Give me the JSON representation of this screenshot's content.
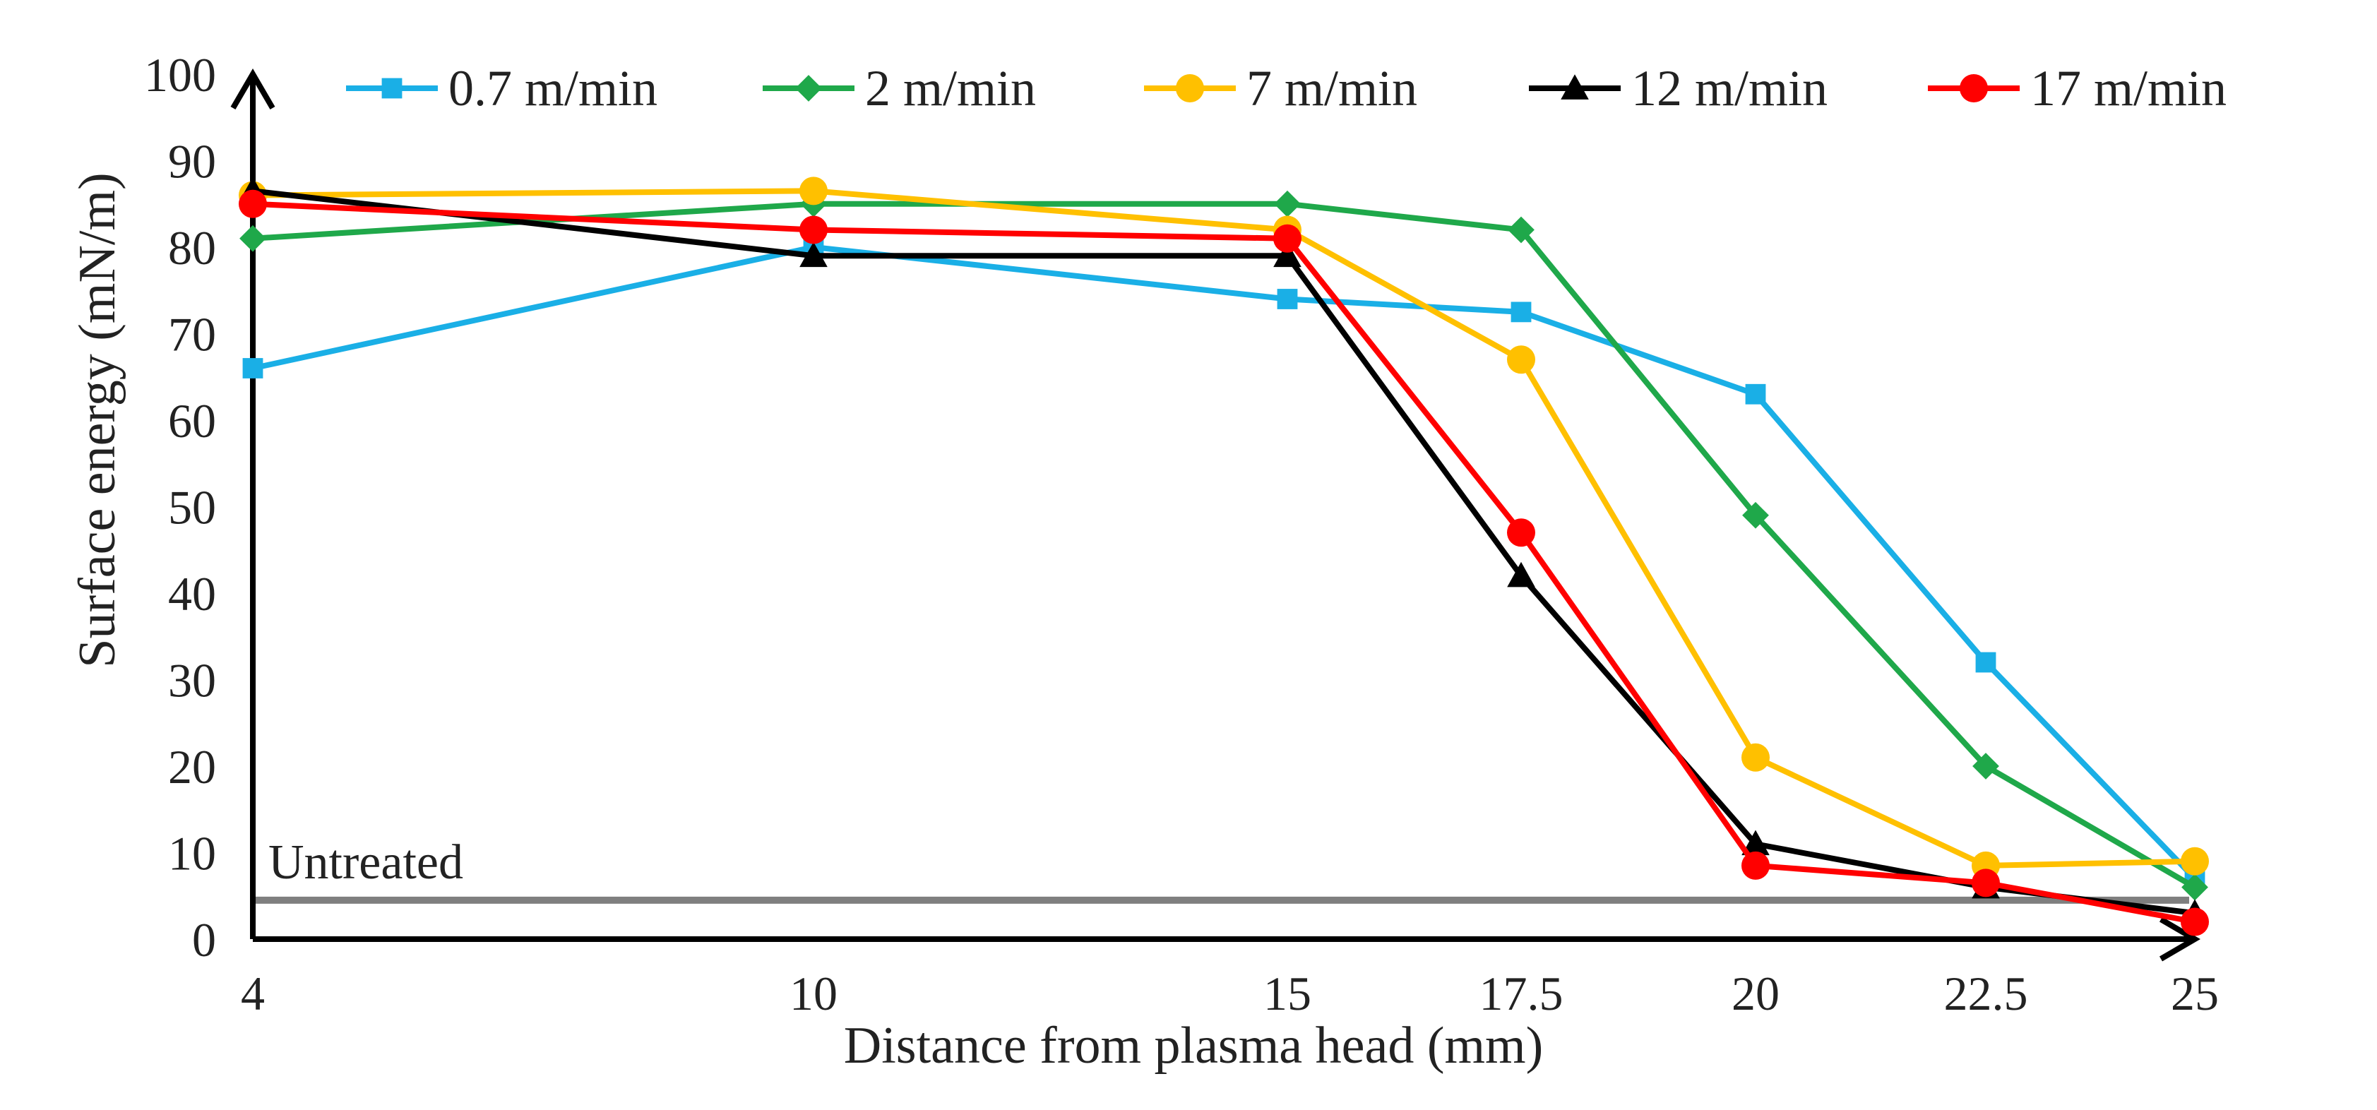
{
  "chart_data": {
    "type": "line",
    "title": "",
    "xlabel": "Distance from plasma head  (mm)",
    "ylabel": "Surface energy  (mN/m)",
    "x_scale": "categorical",
    "categories": [
      "4",
      "10",
      "15",
      "17.5",
      "20",
      "22.5",
      "25"
    ],
    "ylim": [
      0,
      100
    ],
    "yticks": [
      0,
      10,
      20,
      30,
      40,
      50,
      60,
      70,
      80,
      90,
      100
    ],
    "grid": false,
    "legend_position": "top",
    "series": [
      {
        "name": "0.7 m/min",
        "color": "#1AAFE6",
        "marker": "square",
        "values": [
          66,
          80,
          74,
          72.5,
          63,
          32,
          7
        ]
      },
      {
        "name": "2 m/min",
        "color": "#1FA84A",
        "marker": "diamond",
        "values": [
          81,
          85,
          85,
          82,
          49,
          20,
          6
        ]
      },
      {
        "name": "7 m/min",
        "color": "#FFC000",
        "marker": "circle",
        "values": [
          86,
          86.5,
          82,
          67,
          21,
          8.5,
          9
        ]
      },
      {
        "name": "12 m/min",
        "color": "#000000",
        "marker": "triangle",
        "values": [
          86.5,
          79,
          79,
          42,
          11,
          6,
          3
        ]
      },
      {
        "name": "17 m/min",
        "color": "#FF0000",
        "marker": "circle",
        "values": [
          85,
          82,
          81,
          47,
          8.5,
          6.5,
          2
        ]
      }
    ],
    "reference_line": {
      "label": "Untreated",
      "value": 4.5,
      "color": "#7F7F7F"
    }
  }
}
